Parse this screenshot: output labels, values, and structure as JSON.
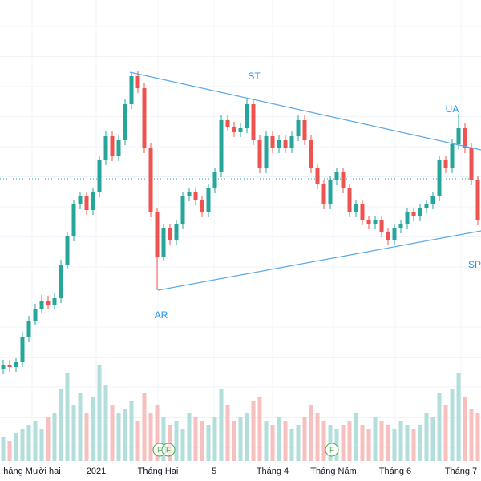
{
  "chart_data": {
    "type": "candlestick",
    "x_labels": [
      "háng Mười hai",
      "2021",
      "Tháng Hai",
      "5",
      "Tháng 4",
      "Tháng Năm",
      "Tháng 6",
      "Tháng 7"
    ],
    "annotations": [
      "AR",
      "ST",
      "UA",
      "SP"
    ],
    "events": [
      "F",
      "F",
      "F"
    ],
    "ylim": [
      0,
      600
    ],
    "volume_lim": [
      0,
      150
    ],
    "up_color": "#26a69a",
    "down_color": "#ef5350",
    "up_volume_color": "#b2dfdb",
    "down_volume_color": "#f7c0bf",
    "open": [
      140,
      145,
      142,
      148,
      180,
      200,
      215,
      225,
      220,
      228,
      270,
      305,
      345,
      355,
      338,
      360,
      400,
      430,
      405,
      425,
      470,
      505,
      490,
      415,
      335,
      280,
      315,
      300,
      320,
      355,
      360,
      350,
      335,
      365,
      385,
      450,
      442,
      435,
      440,
      470,
      425,
      390,
      430,
      415,
      425,
      415,
      430,
      450,
      425,
      390,
      370,
      345,
      375,
      385,
      365,
      335,
      345,
      325,
      320,
      325,
      310,
      300,
      315,
      320,
      335,
      330,
      340,
      345,
      355,
      400,
      390,
      420,
      440,
      415,
      375
    ],
    "high": [
      151,
      151,
      154,
      186,
      206,
      221,
      232,
      231,
      234,
      276,
      311,
      351,
      361,
      361,
      366,
      406,
      436,
      436,
      431,
      476,
      510,
      511,
      496,
      421,
      341,
      321,
      321,
      326,
      361,
      366,
      366,
      356,
      371,
      391,
      456,
      456,
      448,
      446,
      476,
      476,
      431,
      436,
      436,
      431,
      431,
      436,
      456,
      456,
      431,
      396,
      376,
      381,
      391,
      391,
      371,
      351,
      351,
      331,
      331,
      331,
      316,
      321,
      326,
      341,
      341,
      346,
      351,
      361,
      406,
      406,
      426,
      458,
      446,
      421,
      381
    ],
    "low": [
      134,
      136,
      136,
      142,
      174,
      194,
      209,
      214,
      214,
      222,
      264,
      299,
      339,
      332,
      332,
      354,
      394,
      399,
      399,
      419,
      464,
      484,
      409,
      329,
      238,
      274,
      294,
      294,
      314,
      349,
      344,
      329,
      329,
      359,
      379,
      436,
      429,
      429,
      434,
      419,
      384,
      384,
      409,
      409,
      409,
      409,
      424,
      419,
      384,
      364,
      339,
      339,
      369,
      359,
      329,
      329,
      319,
      314,
      314,
      304,
      294,
      294,
      309,
      314,
      324,
      324,
      334,
      339,
      349,
      384,
      384,
      414,
      409,
      369,
      319
    ],
    "close": [
      145,
      142,
      148,
      180,
      200,
      215,
      225,
      220,
      228,
      270,
      305,
      345,
      355,
      338,
      360,
      400,
      430,
      405,
      425,
      470,
      505,
      490,
      415,
      335,
      280,
      315,
      300,
      320,
      355,
      360,
      350,
      335,
      365,
      385,
      450,
      442,
      435,
      440,
      470,
      425,
      390,
      430,
      415,
      425,
      415,
      430,
      450,
      425,
      390,
      370,
      345,
      375,
      385,
      365,
      335,
      345,
      325,
      320,
      325,
      310,
      300,
      315,
      320,
      335,
      330,
      340,
      345,
      355,
      400,
      390,
      420,
      440,
      415,
      375,
      325
    ],
    "volume": [
      30,
      25,
      35,
      40,
      45,
      50,
      40,
      55,
      60,
      90,
      110,
      70,
      85,
      60,
      80,
      120,
      95,
      70,
      60,
      65,
      75,
      50,
      85,
      60,
      70,
      55,
      45,
      50,
      40,
      60,
      55,
      50,
      45,
      55,
      90,
      70,
      50,
      55,
      60,
      75,
      80,
      50,
      45,
      55,
      50,
      40,
      45,
      55,
      70,
      60,
      50,
      45,
      40,
      45,
      50,
      60,
      45,
      40,
      55,
      50,
      45,
      40,
      50,
      45,
      40,
      45,
      60,
      55,
      85,
      70,
      90,
      110,
      80,
      65,
      60
    ]
  }
}
